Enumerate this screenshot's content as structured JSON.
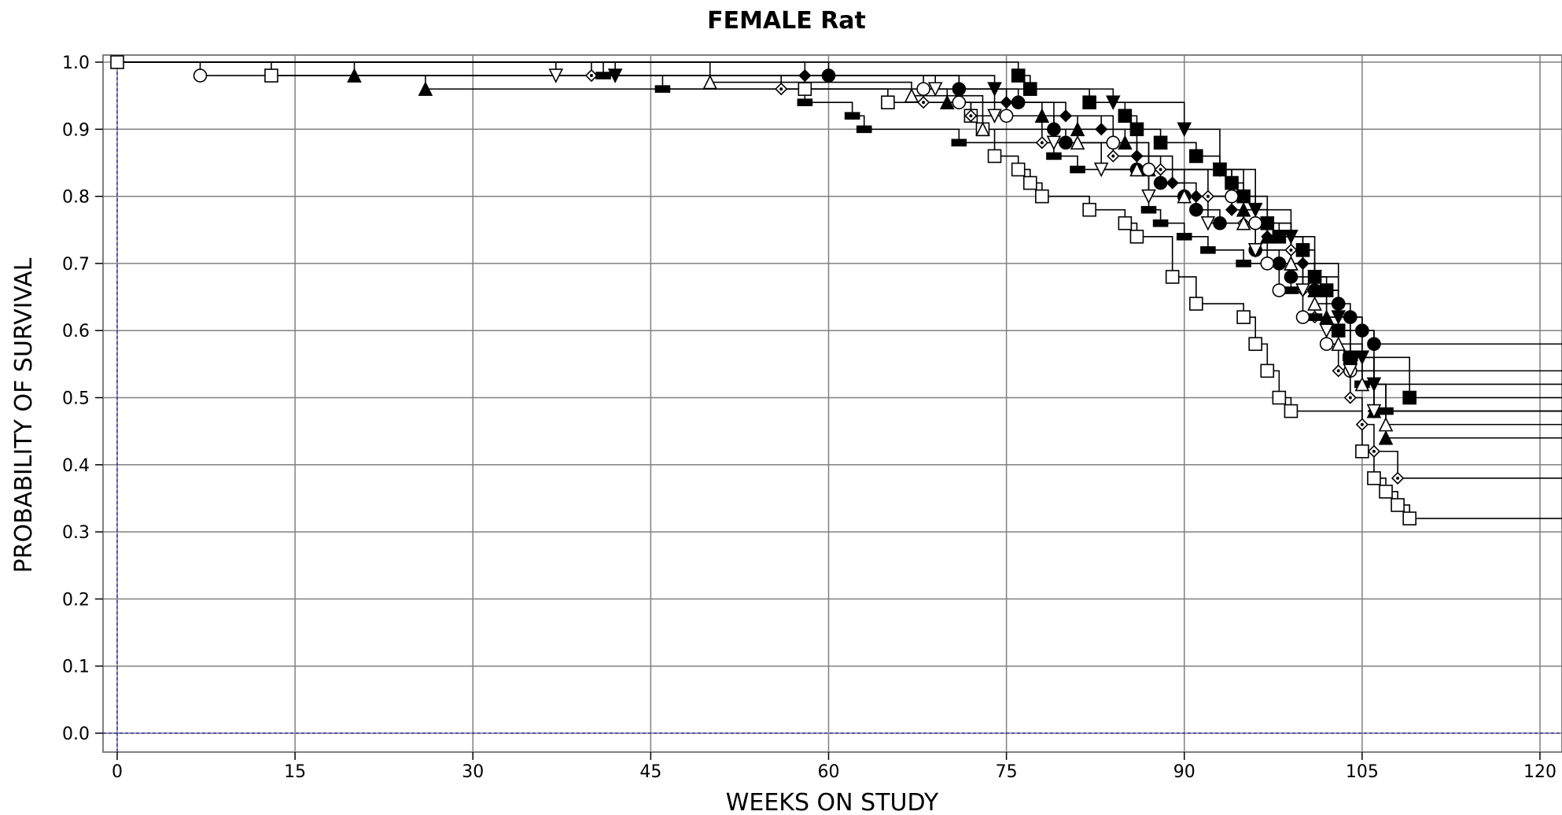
{
  "chart_data": {
    "type": "line",
    "subtype": "kaplan-meier-survival",
    "title": "FEMALE Rat",
    "xlabel": "WEEKS ON STUDY",
    "ylabel": "PROBABILITY OF SURVIVAL",
    "xlim": [
      0,
      120
    ],
    "ylim": [
      0.0,
      1.0
    ],
    "x_ticks": [
      "0",
      "15",
      "30",
      "45",
      "60",
      "75",
      "90",
      "105",
      "120"
    ],
    "y_ticks": [
      "0.0",
      "0.1",
      "0.2",
      "0.3",
      "0.4",
      "0.5",
      "0.6",
      "0.7",
      "0.8",
      "0.9",
      "1.0"
    ],
    "grid": true,
    "legend": "none",
    "colors": {
      "line": "#000000",
      "grid": "#808080",
      "reference": "#3333aa"
    },
    "series": [
      {
        "marker": "open-square",
        "x": [
          0,
          13,
          58,
          65,
          72,
          73,
          74,
          76,
          77,
          78,
          82,
          85,
          86,
          89,
          91,
          95,
          96,
          97,
          98,
          99,
          105,
          106,
          107,
          108,
          109,
          125
        ],
        "y": [
          1.0,
          0.98,
          0.96,
          0.94,
          0.92,
          0.9,
          0.86,
          0.84,
          0.82,
          0.8,
          0.78,
          0.76,
          0.74,
          0.68,
          0.64,
          0.62,
          0.58,
          0.54,
          0.5,
          0.48,
          0.42,
          0.38,
          0.36,
          0.34,
          0.32,
          0.32
        ]
      },
      {
        "marker": "filled-circle",
        "x": [
          0,
          60,
          71,
          76,
          79,
          80,
          86,
          88,
          90,
          91,
          93,
          96,
          98,
          99,
          101,
          103,
          104,
          105,
          106,
          125
        ],
        "y": [
          1.0,
          0.98,
          0.96,
          0.94,
          0.9,
          0.88,
          0.84,
          0.82,
          0.8,
          0.78,
          0.76,
          0.72,
          0.7,
          0.68,
          0.66,
          0.64,
          0.62,
          0.6,
          0.58,
          0.58
        ]
      },
      {
        "marker": "filled-square",
        "x": [
          0,
          76,
          77,
          82,
          85,
          86,
          88,
          91,
          93,
          94,
          95,
          97,
          98,
          100,
          101,
          102,
          103,
          104,
          109,
          125
        ],
        "y": [
          1.0,
          0.98,
          0.96,
          0.94,
          0.92,
          0.9,
          0.88,
          0.86,
          0.84,
          0.82,
          0.8,
          0.76,
          0.74,
          0.72,
          0.68,
          0.66,
          0.6,
          0.56,
          0.5,
          0.5
        ]
      },
      {
        "marker": "filled-triangle",
        "x": [
          0,
          20,
          26,
          70,
          78,
          81,
          85,
          87,
          95,
          97,
          99,
          101,
          102,
          104,
          106,
          107,
          125
        ],
        "y": [
          1.0,
          0.98,
          0.96,
          0.94,
          0.92,
          0.9,
          0.88,
          0.84,
          0.78,
          0.74,
          0.7,
          0.66,
          0.62,
          0.56,
          0.48,
          0.44,
          0.44
        ]
      },
      {
        "marker": "filled-inverted-triangle",
        "x": [
          0,
          42,
          74,
          84,
          90,
          93,
          96,
          99,
          101,
          103,
          105,
          106,
          125
        ],
        "y": [
          1.0,
          0.98,
          0.96,
          0.94,
          0.9,
          0.84,
          0.78,
          0.74,
          0.68,
          0.62,
          0.56,
          0.52,
          0.52
        ]
      },
      {
        "marker": "open-diamond",
        "x": [
          0,
          40,
          56,
          68,
          72,
          78,
          84,
          88,
          92,
          95,
          99,
          100,
          101,
          102,
          103,
          104,
          105,
          106,
          108,
          125
        ],
        "y": [
          1.0,
          0.98,
          0.96,
          0.94,
          0.92,
          0.88,
          0.86,
          0.84,
          0.8,
          0.76,
          0.72,
          0.66,
          0.62,
          0.58,
          0.54,
          0.5,
          0.46,
          0.42,
          0.38,
          0.38
        ]
      },
      {
        "marker": "filled-diamond",
        "x": [
          0,
          58,
          71,
          75,
          80,
          83,
          86,
          89,
          91,
          94,
          97,
          100,
          103,
          106,
          125
        ],
        "y": [
          1.0,
          0.98,
          0.96,
          0.94,
          0.92,
          0.9,
          0.86,
          0.82,
          0.8,
          0.78,
          0.74,
          0.7,
          0.6,
          0.48,
          0.48
        ]
      },
      {
        "marker": "filled-rect",
        "x": [
          0,
          41,
          46,
          58,
          62,
          63,
          71,
          79,
          81,
          87,
          88,
          90,
          92,
          95,
          99,
          101,
          104,
          105,
          107,
          125
        ],
        "y": [
          1.0,
          0.98,
          0.96,
          0.94,
          0.92,
          0.9,
          0.88,
          0.86,
          0.84,
          0.78,
          0.76,
          0.74,
          0.72,
          0.7,
          0.66,
          0.62,
          0.56,
          0.52,
          0.48,
          0.48
        ]
      },
      {
        "marker": "open-circle",
        "x": [
          0,
          7,
          68,
          71,
          75,
          84,
          87,
          94,
          96,
          97,
          98,
          100,
          102,
          104,
          125
        ],
        "y": [
          1.0,
          0.98,
          0.96,
          0.94,
          0.92,
          0.88,
          0.84,
          0.8,
          0.76,
          0.7,
          0.66,
          0.62,
          0.58,
          0.54,
          0.54
        ]
      },
      {
        "marker": "open-triangle",
        "x": [
          0,
          50,
          67,
          73,
          81,
          86,
          90,
          95,
          99,
          101,
          103,
          105,
          107,
          125
        ],
        "y": [
          1.0,
          0.97,
          0.95,
          0.9,
          0.88,
          0.84,
          0.8,
          0.76,
          0.7,
          0.64,
          0.58,
          0.52,
          0.46,
          0.46
        ]
      },
      {
        "marker": "open-inverted-triangle",
        "x": [
          0,
          37,
          69,
          74,
          79,
          83,
          87,
          92,
          96,
          100,
          102,
          104,
          106,
          125
        ],
        "y": [
          1.0,
          0.98,
          0.96,
          0.92,
          0.88,
          0.84,
          0.8,
          0.76,
          0.72,
          0.66,
          0.6,
          0.54,
          0.48,
          0.48
        ]
      }
    ]
  }
}
